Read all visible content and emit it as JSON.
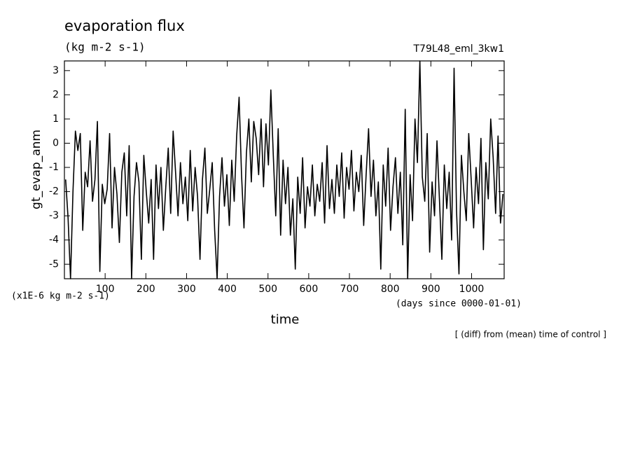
{
  "chart_data": {
    "type": "line",
    "title": "evaporation flux",
    "subtitle": "(kg m-2 s-1)",
    "run_label": "T79L48_eml_3kw1",
    "y_label": "gt_evap_anm",
    "y_unit": "(x1E-6 kg m-2 s-1)",
    "x_label": "time",
    "x_unit": "(days since 0000-01-01)",
    "note": "[ (diff) from (mean) time of control ]",
    "xlim": [
      0,
      1080
    ],
    "ylim": [
      -5.6,
      3.4
    ],
    "xticks": [
      100,
      200,
      300,
      400,
      500,
      600,
      700,
      800,
      900,
      1000
    ],
    "yticks": [
      -5,
      -4,
      -3,
      -2,
      -1,
      0,
      1,
      2,
      3
    ],
    "grid": false,
    "x": [
      3,
      9,
      15,
      21,
      27,
      33,
      39,
      45,
      51,
      57,
      63,
      69,
      75,
      81,
      87,
      93,
      99,
      105,
      111,
      117,
      123,
      129,
      135,
      141,
      147,
      153,
      159,
      165,
      171,
      177,
      183,
      189,
      195,
      201,
      207,
      213,
      219,
      225,
      231,
      237,
      243,
      249,
      255,
      261,
      267,
      273,
      279,
      285,
      291,
      297,
      303,
      309,
      315,
      321,
      327,
      333,
      339,
      345,
      351,
      357,
      363,
      369,
      375,
      381,
      387,
      393,
      399,
      405,
      411,
      417,
      423,
      429,
      435,
      441,
      447,
      453,
      459,
      465,
      471,
      477,
      483,
      489,
      495,
      501,
      507,
      513,
      519,
      525,
      531,
      537,
      543,
      549,
      555,
      561,
      567,
      573,
      579,
      585,
      591,
      597,
      603,
      609,
      615,
      621,
      627,
      633,
      639,
      645,
      651,
      657,
      663,
      669,
      675,
      681,
      687,
      693,
      699,
      705,
      711,
      717,
      723,
      729,
      735,
      741,
      747,
      753,
      759,
      765,
      771,
      777,
      783,
      789,
      795,
      801,
      807,
      813,
      819,
      825,
      831,
      837,
      843,
      849,
      855,
      861,
      867,
      873,
      879,
      885,
      891,
      897,
      903,
      909,
      915,
      921,
      927,
      933,
      939,
      945,
      951,
      957,
      963,
      969,
      975,
      981,
      987,
      993,
      999,
      1005,
      1011,
      1017,
      1023,
      1029,
      1035,
      1041,
      1047,
      1053,
      1059,
      1065,
      1071,
      1077
    ],
    "series": [
      {
        "name": "gt_evap_anm",
        "color": "#000000",
        "values": [
          -1.5,
          -3.1,
          -5.6,
          -2.0,
          0.5,
          -0.3,
          0.4,
          -3.6,
          -1.2,
          -1.8,
          0.1,
          -2.4,
          -1.5,
          0.9,
          -5.3,
          -1.7,
          -2.5,
          -1.9,
          0.4,
          -3.5,
          -1.0,
          -2.1,
          -4.1,
          -1.2,
          -0.4,
          -3.0,
          -0.1,
          -5.6,
          -2.2,
          -0.8,
          -1.6,
          -4.8,
          -0.5,
          -2.0,
          -3.3,
          -1.5,
          -4.8,
          -0.9,
          -2.7,
          -1.0,
          -3.6,
          -1.8,
          -0.2,
          -2.9,
          0.5,
          -1.2,
          -3.0,
          -0.8,
          -2.5,
          -1.4,
          -3.2,
          -0.3,
          -2.8,
          -1.0,
          -2.2,
          -4.8,
          -1.5,
          -0.2,
          -2.9,
          -1.9,
          -0.8,
          -3.6,
          -5.6,
          -2.2,
          -0.6,
          -2.6,
          -1.3,
          -3.4,
          -0.7,
          -2.4,
          0.3,
          1.9,
          -1.3,
          -3.5,
          -0.4,
          1.0,
          -1.6,
          0.9,
          0.2,
          -1.3,
          1.0,
          -1.8,
          0.8,
          -0.9,
          2.2,
          -0.5,
          -3.0,
          0.6,
          -3.8,
          -0.7,
          -2.5,
          -1.0,
          -3.8,
          -2.3,
          -5.2,
          -1.4,
          -2.9,
          -0.6,
          -3.5,
          -1.8,
          -2.6,
          -0.9,
          -3.0,
          -1.7,
          -2.4,
          -0.8,
          -3.3,
          -0.1,
          -2.7,
          -1.5,
          -2.9,
          -0.9,
          -2.2,
          -0.4,
          -3.1,
          -1.0,
          -1.9,
          -0.3,
          -2.8,
          -1.2,
          -2.0,
          -0.5,
          -3.4,
          -1.3,
          0.6,
          -2.2,
          -0.7,
          -3.0,
          -1.6,
          -5.2,
          -0.9,
          -2.6,
          -0.2,
          -3.6,
          -1.8,
          -0.6,
          -2.9,
          -1.2,
          -4.2,
          1.4,
          -5.6,
          -1.3,
          -3.2,
          1.0,
          -0.8,
          3.4,
          -1.4,
          -2.4,
          0.4,
          -4.5,
          -1.6,
          -3.0,
          0.1,
          -2.3,
          -4.8,
          -0.9,
          -2.7,
          -1.2,
          -4.0,
          3.1,
          -2.8,
          -5.4,
          -0.5,
          -2.0,
          -3.2,
          0.4,
          -1.5,
          -3.5,
          -1.0,
          -2.5,
          0.2,
          -4.4,
          -0.8,
          -2.3,
          1.0,
          -0.6,
          -2.9,
          0.3,
          -3.3,
          -2.1
        ]
      }
    ]
  }
}
